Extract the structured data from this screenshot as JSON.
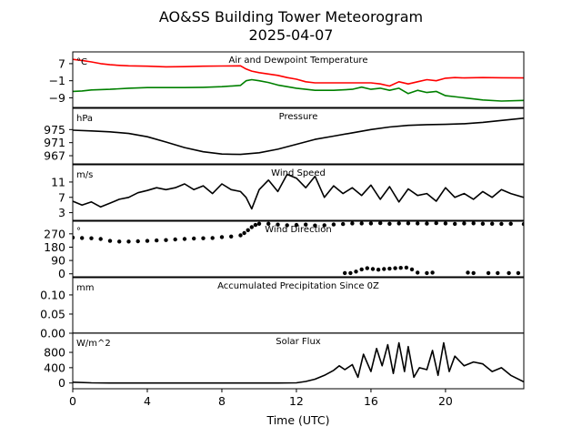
{
  "title": "AO&SS Building Tower Meteorogram",
  "subtitle": "2025-04-07",
  "xlabel": "Time (UTC)",
  "chart_data": {
    "type": "line",
    "x_ticks": [
      0,
      4,
      8,
      12,
      16,
      20
    ],
    "xlim": [
      0,
      24.2
    ],
    "panels": [
      {
        "title": "Air and Dewpoint Temperature",
        "unit": "°C",
        "yticks": [
          7,
          -1,
          -9
        ],
        "ylim": [
          -13.5,
          12.5
        ],
        "series": [
          {
            "color": "#ff0000",
            "style": "line",
            "x": [
              0,
              0.5,
              1,
              1.5,
              2,
              2.5,
              3,
              4,
              5,
              6,
              7,
              8,
              9,
              9.3,
              9.6,
              10,
              11,
              11.5,
              12,
              12.5,
              13,
              14,
              15,
              16,
              16.5,
              17,
              17.5,
              18,
              18.5,
              19,
              19.5,
              20,
              20.5,
              21,
              22,
              23,
              24.2
            ],
            "y": [
              9,
              8.5,
              7.8,
              7,
              6.5,
              6.2,
              6,
              5.8,
              5.5,
              5.6,
              5.8,
              5.9,
              6,
              4.5,
              3.5,
              2.8,
              1.5,
              0.5,
              -0.3,
              -1.5,
              -2,
              -2,
              -2,
              -2,
              -2.5,
              -3.5,
              -1.5,
              -2.5,
              -1.5,
              -0.5,
              -1,
              0.2,
              0.5,
              0.3,
              0.5,
              0.4,
              0.3
            ]
          },
          {
            "color": "#008000",
            "style": "line",
            "x": [
              0,
              0.5,
              1,
              2,
              3,
              4,
              5,
              6,
              7,
              8,
              9,
              9.3,
              9.6,
              10,
              10.5,
              11,
              12,
              13,
              14,
              15,
              15.5,
              16,
              16.5,
              17,
              17.5,
              18,
              18.5,
              19,
              19.5,
              20,
              21,
              22,
              23,
              24.2
            ],
            "y": [
              -6,
              -5.8,
              -5.3,
              -5,
              -4.5,
              -4.2,
              -4.2,
              -4.2,
              -4.1,
              -3.8,
              -3.2,
              -1,
              -0.5,
              -1,
              -1.8,
              -3,
              -4.5,
              -5.5,
              -5.5,
              -5,
              -4,
              -5,
              -4.5,
              -5.5,
              -4.5,
              -7,
              -5.5,
              -6.5,
              -6,
              -8,
              -9,
              -10,
              -10.5,
              -10.2
            ]
          }
        ]
      },
      {
        "title": "Pressure",
        "unit": "hPa",
        "yticks": [
          975,
          971,
          967
        ],
        "ylim": [
          964.5,
          981.5
        ],
        "series": [
          {
            "color": "#000000",
            "style": "line",
            "x": [
              0,
              1,
              2,
              3,
              4,
              5,
              6,
              7,
              8,
              9,
              10,
              11,
              12,
              13,
              14,
              15,
              16,
              17,
              18,
              19,
              20,
              21,
              22,
              23,
              24.2
            ],
            "y": [
              974.8,
              974.6,
              974.3,
              973.8,
              972.8,
              971.2,
              969.5,
              968.2,
              967.5,
              967.4,
              967.9,
              969,
              970.5,
              972,
              973,
              974,
              975,
              975.8,
              976.3,
              976.5,
              976.6,
              976.8,
              977.2,
              977.8,
              978.5
            ]
          }
        ]
      },
      {
        "title": "Wind Speed",
        "unit": "m/s",
        "yticks": [
          11,
          7,
          3
        ],
        "ylim": [
          1,
          15.5
        ],
        "series": [
          {
            "color": "#000000",
            "style": "line",
            "x": [
              0,
              0.5,
              1,
              1.5,
              2,
              2.5,
              3,
              3.5,
              4,
              4.5,
              5,
              5.5,
              6,
              6.5,
              7,
              7.5,
              8,
              8.5,
              9,
              9.3,
              9.6,
              10,
              10.5,
              11,
              11.5,
              12,
              12.5,
              13,
              13.5,
              14,
              14.5,
              15,
              15.5,
              16,
              16.5,
              17,
              17.5,
              18,
              18.5,
              19,
              19.5,
              20,
              20.5,
              21,
              21.5,
              22,
              22.5,
              23,
              23.5,
              24.2
            ],
            "y": [
              6,
              5,
              5.8,
              4.5,
              5.5,
              6.5,
              7,
              8.2,
              8.8,
              9.5,
              9,
              9.5,
              10.5,
              9,
              10,
              8,
              10.5,
              9,
              8.5,
              7,
              4,
              9,
              11.5,
              8.5,
              13,
              12,
              9.5,
              12.5,
              7,
              10,
              8,
              9.5,
              7.5,
              10.2,
              6.5,
              9.8,
              5.8,
              9.2,
              7.5,
              8,
              6,
              9.5,
              7,
              8,
              6.5,
              8.5,
              7,
              9,
              8,
              7
            ]
          }
        ]
      },
      {
        "title": "Wind Direction",
        "unit": "°",
        "yticks": [
          270,
          180,
          90,
          0
        ],
        "ylim": [
          -20,
          355
        ],
        "series": [
          {
            "color": "#000000",
            "style": "points",
            "x": [
              0,
              0.5,
              1,
              1.5,
              2,
              2.5,
              3,
              3.5,
              4,
              4.5,
              5,
              5.5,
              6,
              6.5,
              7,
              7.5,
              8,
              8.5,
              9,
              9.2,
              9.4,
              9.6,
              9.8,
              10,
              10.5,
              11,
              11.5,
              12,
              12.5,
              13,
              13.5,
              14,
              14.5,
              15,
              15.5,
              16,
              16.5,
              17,
              17.5,
              18,
              18.5,
              19,
              19.5,
              20,
              20.5,
              21,
              21.5,
              22,
              22.5,
              23,
              23.5,
              24.2
            ],
            "y": [
              245,
              242,
              240,
              235,
              222,
              218,
              218,
              220,
              222,
              225,
              228,
              232,
              235,
              238,
              240,
              242,
              248,
              252,
              260,
              275,
              295,
              315,
              330,
              338,
              338,
              332,
              328,
              330,
              332,
              326,
              328,
              333,
              336,
              340,
              340,
              340,
              342,
              338,
              340,
              341,
              340,
              339,
              342,
              340,
              337,
              340,
              341,
              338,
              338,
              337,
              338,
              336
            ]
          },
          {
            "color": "#000000",
            "style": "points",
            "x": [
              14.6,
              14.9,
              15.2,
              15.5,
              15.8,
              16.1,
              16.4,
              16.7,
              17,
              17.3,
              17.6,
              17.9,
              18.2,
              18.5,
              19,
              19.3,
              21.2,
              21.5,
              22.3,
              22.8,
              23.4,
              23.9
            ],
            "y": [
              5,
              5,
              15,
              30,
              38,
              32,
              28,
              32,
              35,
              38,
              40,
              42,
              30,
              8,
              5,
              8,
              8,
              5,
              5,
              5,
              5,
              5
            ]
          }
        ]
      },
      {
        "title": "Accumulated Precipitation Since 0Z",
        "unit": "mm",
        "yticks": [
          0.1,
          0.05,
          0.0
        ],
        "ylim": [
          0.0,
          0.145
        ],
        "series": [
          {
            "color": "#000000",
            "style": "line",
            "x": [
              0,
              24.2
            ],
            "y": [
              0,
              0
            ]
          }
        ]
      },
      {
        "title": "Solar Flux",
        "unit": "W/m^2",
        "yticks": [
          800,
          400,
          0
        ],
        "ylim": [
          -150,
          1300
        ],
        "series": [
          {
            "color": "#000000",
            "style": "line",
            "x": [
              0,
              1,
              2,
              3,
              4,
              5,
              6,
              7,
              8,
              9,
              10,
              11,
              12,
              12.5,
              13,
              13.5,
              14,
              14.3,
              14.6,
              15,
              15.3,
              15.6,
              16,
              16.3,
              16.6,
              16.9,
              17.2,
              17.5,
              17.8,
              18,
              18.3,
              18.6,
              19,
              19.3,
              19.6,
              19.9,
              20.2,
              20.5,
              21,
              21.5,
              22,
              22.5,
              23,
              23.5,
              24.2
            ],
            "y": [
              20,
              5,
              0,
              0,
              0,
              0,
              0,
              0,
              0,
              0,
              0,
              0,
              5,
              40,
              100,
              200,
              330,
              450,
              350,
              480,
              150,
              750,
              300,
              900,
              450,
              1000,
              250,
              1050,
              300,
              950,
              150,
              400,
              350,
              850,
              200,
              1050,
              300,
              700,
              450,
              550,
              500,
              300,
              400,
              200,
              30
            ]
          }
        ]
      }
    ]
  }
}
